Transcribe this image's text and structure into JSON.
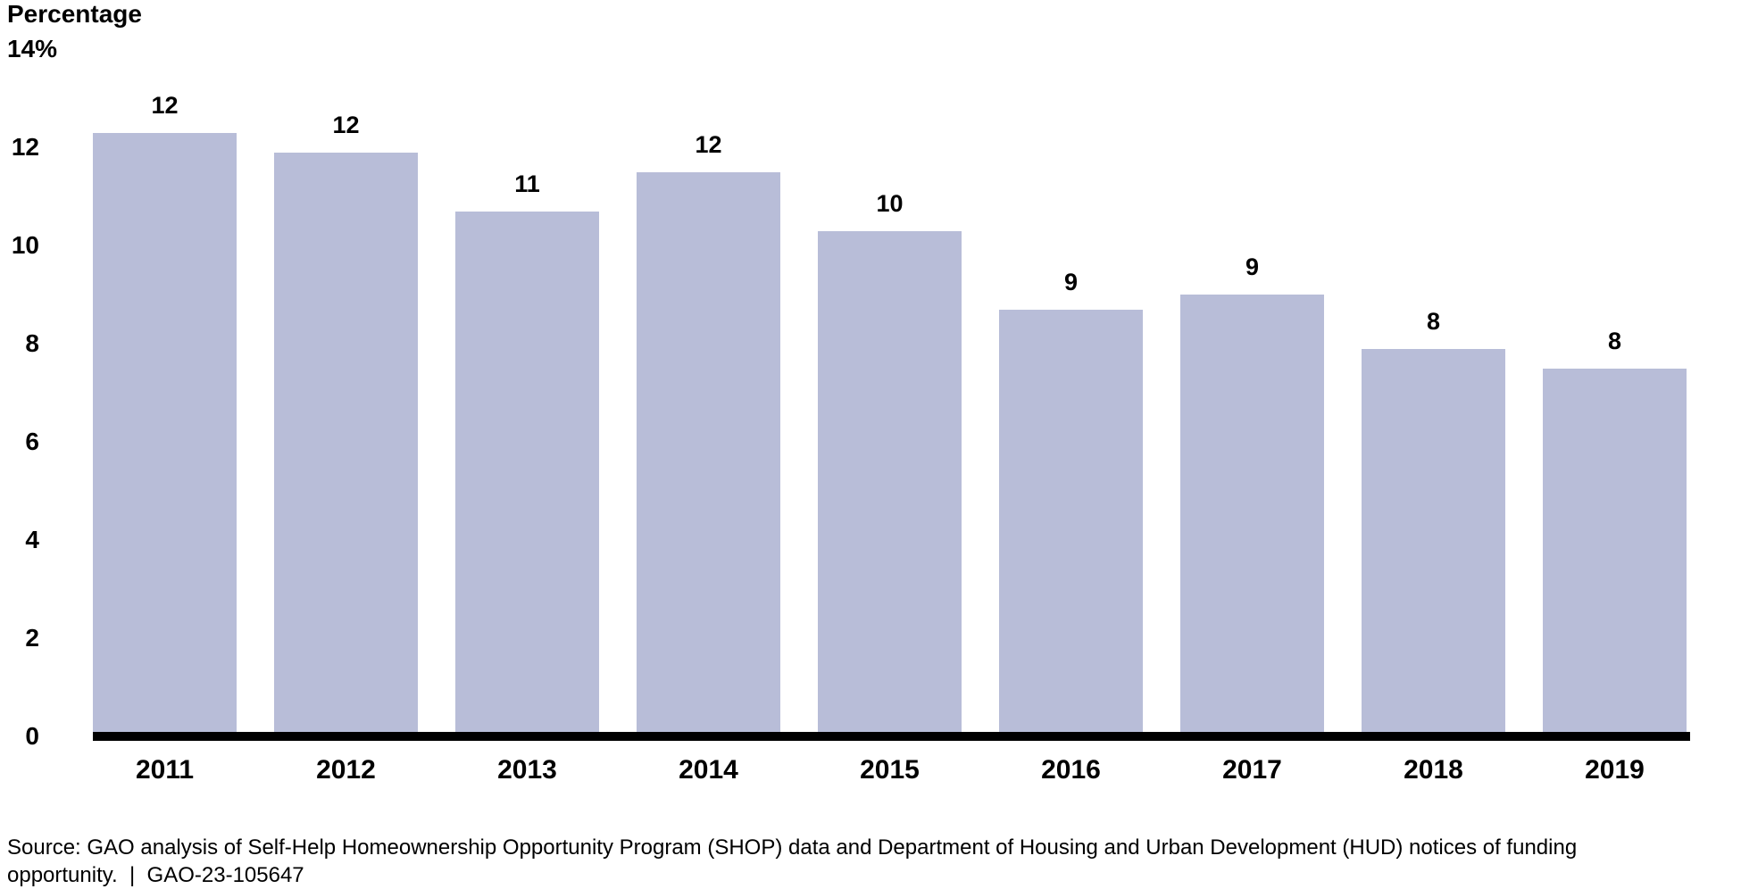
{
  "chart_data": {
    "type": "bar",
    "title": "Percentage",
    "categories": [
      "2011",
      "2012",
      "2013",
      "2014",
      "2015",
      "2016",
      "2017",
      "2018",
      "2019"
    ],
    "values": [
      12.3,
      11.9,
      10.7,
      11.5,
      10.3,
      8.7,
      9.0,
      7.9,
      7.5
    ],
    "bar_labels": [
      "12",
      "12",
      "11",
      "12",
      "10",
      "9",
      "9",
      "8",
      "8"
    ],
    "xlabel": "",
    "ylabel": "Percentage",
    "ylim": [
      0,
      14
    ],
    "y_ticks": [
      0,
      2,
      4,
      6,
      8,
      10,
      12,
      14
    ],
    "y_tick_labels": [
      "0",
      "2",
      "4",
      "6",
      "8",
      "10",
      "12",
      "14%"
    ],
    "grid": false,
    "legend": "none",
    "bar_color": "#b8bdd8",
    "axis_color": "#000000",
    "label_color": "#000000"
  },
  "source": {
    "line1": "Source: GAO analysis of Self-Help Homeownership Opportunity Program (SHOP) data and Department of Housing and Urban Development (HUD) notices of funding",
    "line2": "opportunity.  |  GAO-23-105647"
  }
}
